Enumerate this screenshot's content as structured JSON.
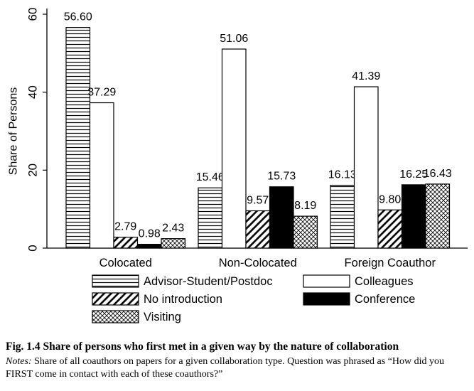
{
  "chart_data": {
    "type": "bar",
    "title": "",
    "xlabel": "",
    "ylabel": "Share of Persons",
    "ylim": [
      0,
      60
    ],
    "yticks": [
      0,
      20,
      40,
      60
    ],
    "grid": false,
    "legend_position": "bottom",
    "categories": [
      "Colocated",
      "Non-Colocated",
      "Foreign Coauthor"
    ],
    "series": [
      {
        "name": "Advisor-Student/Postdoc",
        "pattern": "horizontal-lines",
        "values": [
          56.6,
          15.46,
          16.13
        ],
        "labels": [
          "56.60",
          "15.46",
          "16.13"
        ]
      },
      {
        "name": "Colleagues",
        "pattern": "white",
        "values": [
          37.29,
          51.06,
          41.39
        ],
        "labels": [
          "37.29",
          "51.06",
          "41.39"
        ]
      },
      {
        "name": "No introduction",
        "pattern": "diagonal-lines",
        "values": [
          2.79,
          9.57,
          9.8
        ],
        "labels": [
          "2.79",
          "9.57",
          "9.80"
        ]
      },
      {
        "name": "Conference",
        "pattern": "solid-black",
        "values": [
          0.98,
          15.73,
          16.25
        ],
        "labels": [
          "0.98",
          "15.73",
          "16.25"
        ]
      },
      {
        "name": "Visiting",
        "pattern": "crosshatch",
        "values": [
          2.43,
          8.19,
          16.43
        ],
        "labels": [
          "2.43",
          "8.19",
          "16.43"
        ]
      }
    ]
  },
  "caption": {
    "title": "Fig. 1.4 Share of persons who first met in a given way by the nature of collaboration",
    "notes_label": "Notes:",
    "notes_text": " Share of all coauthors on papers for a given collaboration type. Question was phrased as “How did you FIRST come in contact with each of these coauthors?”"
  }
}
